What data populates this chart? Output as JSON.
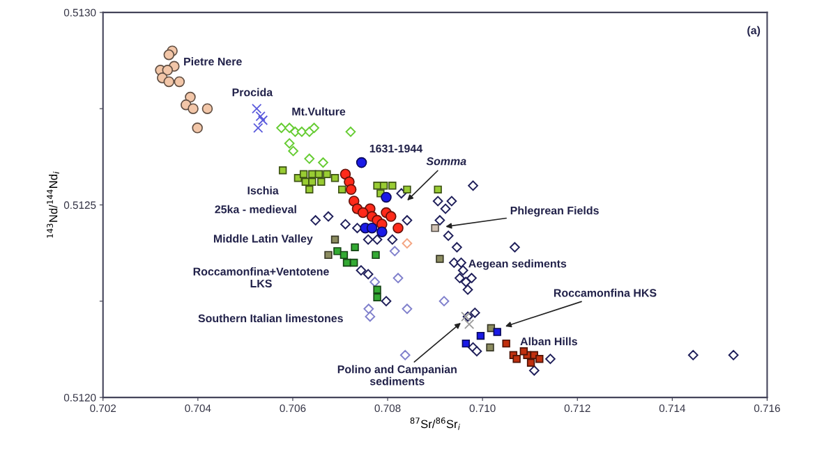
{
  "chart_data": {
    "type": "scatter",
    "xlabel": "$^{87}$Sr/$^{86}$Sr$_{i}$",
    "ylabel": "$^{143}$Nd/$^{144}$Nd$_{i}$",
    "xlim": [
      0.702,
      0.716
    ],
    "ylim": [
      0.512,
      0.513
    ],
    "xticks": [
      {
        "value": 0.702,
        "label": "0.702"
      },
      {
        "value": 0.704,
        "label": "0.704"
      },
      {
        "value": 0.706,
        "label": "0.706"
      },
      {
        "value": 0.708,
        "label": "0.708"
      },
      {
        "value": 0.71,
        "label": "0.710"
      },
      {
        "value": 0.712,
        "label": "0.712"
      },
      {
        "value": 0.714,
        "label": "0.714"
      },
      {
        "value": 0.716,
        "label": "0.716"
      }
    ],
    "yticks": [
      {
        "value": 0.512,
        "label": "0.5120"
      },
      {
        "value": 0.51225,
        "label": null
      },
      {
        "value": 0.5125,
        "label": "0.5125"
      },
      {
        "value": 0.51275,
        "label": null
      },
      {
        "value": 0.513,
        "label": "0.5130"
      }
    ],
    "grid": false,
    "legend": false,
    "series": [
      {
        "color": "#f2c6a8",
        "marker": "circle",
        "x": [
          0.70346,
          0.70339,
          0.7035,
          0.70321,
          0.70336,
          0.70325,
          0.70339,
          0.70361,
          0.70384,
          0.70375,
          0.7039,
          0.7042,
          0.70399
        ],
        "values": [
          0.5129,
          0.51289,
          0.51286,
          0.51285,
          0.51285,
          0.51283,
          0.51282,
          0.51282,
          0.51278,
          0.51276,
          0.51275,
          0.51275,
          0.5127
        ]
      },
      {
        "color": "#5a5adc",
        "marker": "cross",
        "x": [
          0.70524,
          0.70532,
          0.70537,
          0.70527
        ],
        "values": [
          0.51275,
          0.51273,
          0.51272,
          0.5127
        ]
      },
      {
        "color": "#66cc33",
        "marker": "diamond",
        "x": [
          0.70576,
          0.70593,
          0.70605,
          0.70619,
          0.70635,
          0.70645,
          0.70722,
          0.70593,
          0.70601,
          0.70635,
          0.70664
        ],
        "values": [
          0.5127,
          0.5127,
          0.51269,
          0.51269,
          0.51269,
          0.5127,
          0.51269,
          0.51266,
          0.51264,
          0.51262,
          0.51261
        ]
      },
      {
        "color": "#1f1f5a",
        "marker": "diamond",
        "x": [
          0.70648,
          0.70675,
          0.70711,
          0.70736,
          0.70759,
          0.70778,
          0.7081,
          0.70841,
          0.70829,
          0.70906,
          0.70935,
          0.70922,
          0.7091,
          0.70928,
          0.70946,
          0.71068,
          0.7094,
          0.70955,
          0.70959,
          0.70952,
          0.70965,
          0.70977,
          0.70969,
          0.70744,
          0.70759,
          0.70797,
          0.7098,
          0.70984,
          0.70969,
          0.7098,
          0.70988,
          0.71143,
          0.71109,
          0.71444,
          0.71529
        ],
        "values": [
          0.51246,
          0.51247,
          0.51245,
          0.51244,
          0.51241,
          0.51241,
          0.51241,
          0.51246,
          0.51253,
          0.51251,
          0.51251,
          0.51249,
          0.51246,
          0.51242,
          0.51239,
          0.51239,
          0.51235,
          0.51235,
          0.51233,
          0.51231,
          0.5123,
          0.51231,
          0.51228,
          0.51233,
          0.51232,
          0.51225,
          0.51255,
          0.51222,
          0.51221,
          0.51213,
          0.51212,
          0.5121,
          0.51207,
          0.51211,
          0.51211
        ]
      },
      {
        "color": "#8080cc",
        "marker": "diamond",
        "x": [
          0.70815,
          0.70822,
          0.70773,
          0.7076,
          0.70763,
          0.70841,
          0.70919,
          0.70837
        ],
        "values": [
          0.51238,
          0.51231,
          0.5123,
          0.51223,
          0.51221,
          0.51223,
          0.51225,
          0.51211
        ]
      },
      {
        "color": "#99cc33",
        "marker": "square",
        "x": [
          0.70611,
          0.70623,
          0.70641,
          0.70655,
          0.70672,
          0.70689,
          0.70704,
          0.70627,
          0.70641,
          0.7066,
          0.70635,
          0.70778,
          0.70792,
          0.7081,
          0.70785,
          0.70841,
          0.70906,
          0.70579
        ],
        "values": [
          0.51257,
          0.51258,
          0.51258,
          0.51258,
          0.51258,
          0.51257,
          0.51254,
          0.51256,
          0.51256,
          0.51256,
          0.51254,
          0.51255,
          0.51255,
          0.51255,
          0.51253,
          0.51254,
          0.51254,
          0.51259
        ]
      },
      {
        "color": "#33aa33",
        "marker": "square",
        "x": [
          0.70694,
          0.70708,
          0.70731,
          0.70714,
          0.70729,
          0.70775,
          0.70778,
          0.70778
        ],
        "values": [
          0.51238,
          0.51237,
          0.51239,
          0.51235,
          0.51235,
          0.51237,
          0.51228,
          0.51226
        ]
      },
      {
        "color": "#8c8c60",
        "marker": "square",
        "x": [
          0.70689,
          0.70675,
          0.7091,
          0.71018,
          0.71016
        ],
        "values": [
          0.51241,
          0.51237,
          0.51236,
          0.51218,
          0.51213
        ]
      },
      {
        "color": "#d2c3b4",
        "marker": "square",
        "x": [
          0.709
        ],
        "values": [
          0.51244
        ]
      },
      {
        "color": "#f4a582",
        "marker": "diamond",
        "x": [
          0.70841
        ],
        "values": [
          0.5124
        ]
      },
      {
        "color": "#ff2a1a",
        "marker": "circle",
        "x": [
          0.70711,
          0.70719,
          0.70723,
          0.70729,
          0.70736,
          0.70763,
          0.70767,
          0.70778,
          0.70797,
          0.70807,
          0.70822,
          0.70788,
          0.70748
        ],
        "values": [
          0.51258,
          0.51256,
          0.51254,
          0.51251,
          0.51249,
          0.51249,
          0.51247,
          0.51246,
          0.51248,
          0.51247,
          0.51244,
          0.51245,
          0.51248
        ]
      },
      {
        "color": "#1a1ae6",
        "marker": "circle",
        "x": [
          0.70745,
          0.70797,
          0.70753,
          0.70767,
          0.70788
        ],
        "values": [
          0.51261,
          0.51252,
          0.51244,
          0.51244,
          0.51243
        ]
      },
      {
        "color": "#1a1ae6",
        "marker": "square",
        "x": [
          0.70996,
          0.70965,
          0.71031
        ],
        "values": [
          0.51216,
          0.51214,
          0.51217
        ]
      },
      {
        "color": "#999999",
        "marker": "cross",
        "x": [
          0.70965,
          0.70972
        ],
        "values": [
          0.51221,
          0.51219
        ]
      },
      {
        "color": "#c0300f",
        "marker": "square",
        "x": [
          0.7105,
          0.71065,
          0.71094,
          0.71109,
          0.7112,
          0.71072,
          0.71102,
          0.71087
        ],
        "values": [
          0.51214,
          0.51211,
          0.51211,
          0.51211,
          0.5121,
          0.5121,
          0.51209,
          0.51212
        ]
      }
    ],
    "annotations": [
      "Pietre Nere",
      "Procida",
      "Mt.Vulture",
      "1631-1944",
      "Somma",
      "Ischia",
      "25ka - medieval",
      "Phlegrean Fields",
      "Middle Latin Valley",
      "Aegean sediments",
      "Roccamonfina+Ventotene\nLKS",
      "Roccamonfina HKS",
      "Southern Italian limestones",
      "Alban Hills",
      "Polino and Campanian\nsediments",
      "(a)"
    ]
  }
}
